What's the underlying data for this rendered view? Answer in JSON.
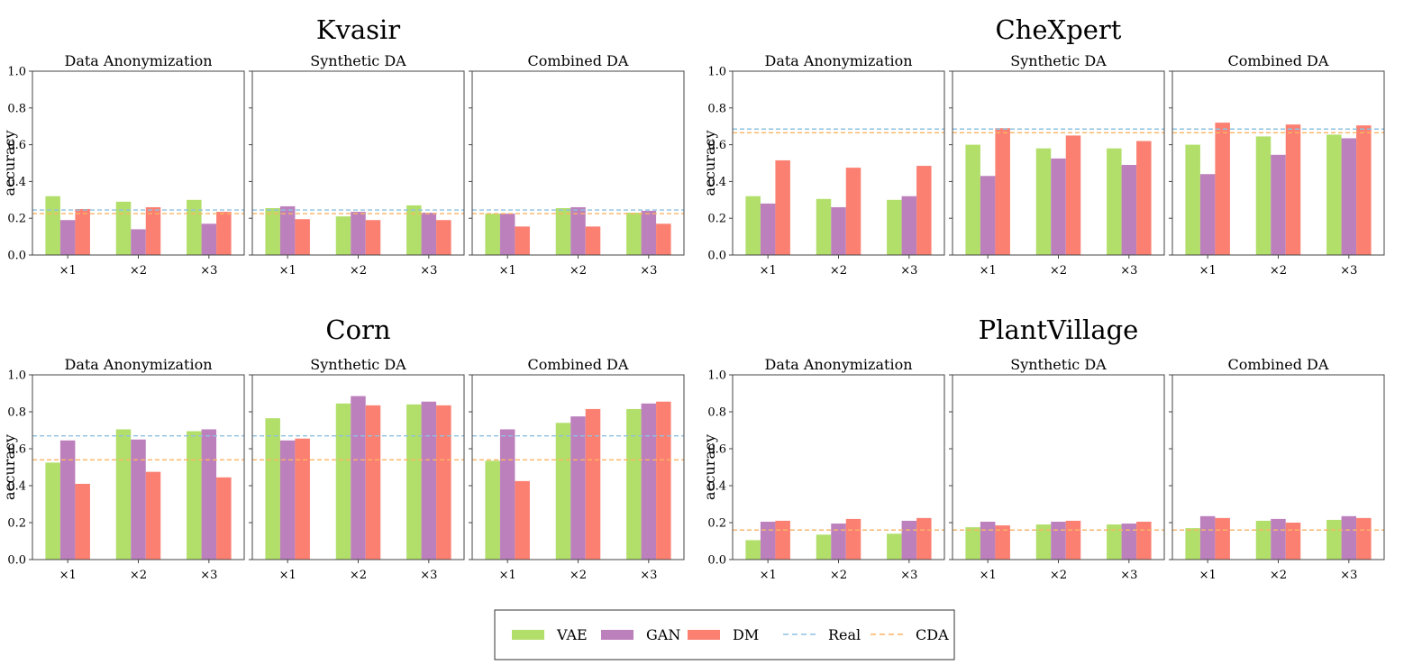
{
  "figure": {
    "tick_prefix": "×"
  },
  "chart_data": [
    {
      "type": "bar",
      "dataset": "Kvasir",
      "ylabel": "accuracy",
      "ylim": [
        0,
        1.0
      ],
      "yticks": [
        "0.0",
        "0.2",
        "0.4",
        "0.6",
        "0.8",
        "1.0"
      ],
      "grid": false,
      "reference_lines": {
        "Real": 0.245,
        "CDA": 0.225
      },
      "panels": [
        {
          "title": "Data Anonymization",
          "categories": [
            "×1",
            "×2",
            "×3"
          ],
          "series": [
            {
              "name": "VAE",
              "values": [
                0.32,
                0.29,
                0.3
              ]
            },
            {
              "name": "GAN",
              "values": [
                0.19,
                0.14,
                0.17
              ]
            },
            {
              "name": "DM",
              "values": [
                0.25,
                0.26,
                0.235
              ]
            }
          ]
        },
        {
          "title": "Synthetic DA",
          "categories": [
            "×1",
            "×2",
            "×3"
          ],
          "series": [
            {
              "name": "VAE",
              "values": [
                0.255,
                0.21,
                0.27
              ]
            },
            {
              "name": "GAN",
              "values": [
                0.265,
                0.235,
                0.23
              ]
            },
            {
              "name": "DM",
              "values": [
                0.195,
                0.19,
                0.19
              ]
            }
          ]
        },
        {
          "title": "Combined DA",
          "categories": [
            "×1",
            "×2",
            "×3"
          ],
          "series": [
            {
              "name": "VAE",
              "values": [
                0.225,
                0.255,
                0.23
              ]
            },
            {
              "name": "GAN",
              "values": [
                0.225,
                0.26,
                0.24
              ]
            },
            {
              "name": "DM",
              "values": [
                0.155,
                0.155,
                0.17
              ]
            }
          ]
        }
      ]
    },
    {
      "type": "bar",
      "dataset": "CheXpert",
      "ylabel": "accuracy",
      "ylim": [
        0,
        1.0
      ],
      "yticks": [
        "0.0",
        "0.2",
        "0.4",
        "0.6",
        "0.8",
        "1.0"
      ],
      "grid": false,
      "reference_lines": {
        "Real": 0.685,
        "CDA": 0.665
      },
      "panels": [
        {
          "title": "Data Anonymization",
          "categories": [
            "×1",
            "×2",
            "×3"
          ],
          "series": [
            {
              "name": "VAE",
              "values": [
                0.32,
                0.305,
                0.3
              ]
            },
            {
              "name": "GAN",
              "values": [
                0.28,
                0.26,
                0.32
              ]
            },
            {
              "name": "DM",
              "values": [
                0.515,
                0.475,
                0.485
              ]
            }
          ]
        },
        {
          "title": "Synthetic DA",
          "categories": [
            "×1",
            "×2",
            "×3"
          ],
          "series": [
            {
              "name": "VAE",
              "values": [
                0.6,
                0.58,
                0.58
              ]
            },
            {
              "name": "GAN",
              "values": [
                0.43,
                0.525,
                0.49
              ]
            },
            {
              "name": "DM",
              "values": [
                0.69,
                0.65,
                0.62
              ]
            }
          ]
        },
        {
          "title": "Combined DA",
          "categories": [
            "×1",
            "×2",
            "×3"
          ],
          "series": [
            {
              "name": "VAE",
              "values": [
                0.6,
                0.645,
                0.655
              ]
            },
            {
              "name": "GAN",
              "values": [
                0.44,
                0.545,
                0.635
              ]
            },
            {
              "name": "DM",
              "values": [
                0.72,
                0.71,
                0.705
              ]
            }
          ]
        }
      ]
    },
    {
      "type": "bar",
      "dataset": "Corn",
      "ylabel": "accuracy",
      "ylim": [
        0,
        1.0
      ],
      "yticks": [
        "0.0",
        "0.2",
        "0.4",
        "0.6",
        "0.8",
        "1.0"
      ],
      "grid": false,
      "reference_lines": {
        "Real": 0.67,
        "CDA": 0.54
      },
      "panels": [
        {
          "title": "Data Anonymization",
          "categories": [
            "×1",
            "×2",
            "×3"
          ],
          "series": [
            {
              "name": "VAE",
              "values": [
                0.525,
                0.705,
                0.695
              ]
            },
            {
              "name": "GAN",
              "values": [
                0.645,
                0.65,
                0.705
              ]
            },
            {
              "name": "DM",
              "values": [
                0.41,
                0.475,
                0.445
              ]
            }
          ]
        },
        {
          "title": "Synthetic DA",
          "categories": [
            "×1",
            "×2",
            "×3"
          ],
          "series": [
            {
              "name": "VAE",
              "values": [
                0.765,
                0.845,
                0.84
              ]
            },
            {
              "name": "GAN",
              "values": [
                0.645,
                0.885,
                0.855
              ]
            },
            {
              "name": "DM",
              "values": [
                0.655,
                0.835,
                0.835
              ]
            }
          ]
        },
        {
          "title": "Combined DA",
          "categories": [
            "×1",
            "×2",
            "×3"
          ],
          "series": [
            {
              "name": "VAE",
              "values": [
                0.535,
                0.74,
                0.815
              ]
            },
            {
              "name": "GAN",
              "values": [
                0.705,
                0.775,
                0.845
              ]
            },
            {
              "name": "DM",
              "values": [
                0.425,
                0.815,
                0.855
              ]
            }
          ]
        }
      ]
    },
    {
      "type": "bar",
      "dataset": "PlantVillage",
      "ylabel": "accuracy",
      "ylim": [
        0,
        1.0
      ],
      "yticks": [
        "0.0",
        "0.2",
        "0.4",
        "0.6",
        "0.8",
        "1.0"
      ],
      "grid": false,
      "reference_lines": {
        "Real": 0.16,
        "CDA": 0.16
      },
      "panels": [
        {
          "title": "Data Anonymization",
          "categories": [
            "×1",
            "×2",
            "×3"
          ],
          "series": [
            {
              "name": "VAE",
              "values": [
                0.105,
                0.135,
                0.14
              ]
            },
            {
              "name": "GAN",
              "values": [
                0.205,
                0.195,
                0.21
              ]
            },
            {
              "name": "DM",
              "values": [
                0.21,
                0.22,
                0.225
              ]
            }
          ]
        },
        {
          "title": "Synthetic DA",
          "categories": [
            "×1",
            "×2",
            "×3"
          ],
          "series": [
            {
              "name": "VAE",
              "values": [
                0.175,
                0.19,
                0.19
              ]
            },
            {
              "name": "GAN",
              "values": [
                0.205,
                0.205,
                0.195
              ]
            },
            {
              "name": "DM",
              "values": [
                0.185,
                0.21,
                0.205
              ]
            }
          ]
        },
        {
          "title": "Combined DA",
          "categories": [
            "×1",
            "×2",
            "×3"
          ],
          "series": [
            {
              "name": "VAE",
              "values": [
                0.17,
                0.21,
                0.215
              ]
            },
            {
              "name": "GAN",
              "values": [
                0.235,
                0.22,
                0.235
              ]
            },
            {
              "name": "DM",
              "values": [
                0.225,
                0.2,
                0.225
              ]
            }
          ]
        }
      ]
    }
  ],
  "legend": {
    "placement": "bottom-center",
    "items": [
      {
        "label": "VAE",
        "kind": "bar",
        "color": "#b2df6a"
      },
      {
        "label": "GAN",
        "kind": "bar",
        "color": "#bc80bd"
      },
      {
        "label": "DM",
        "kind": "bar",
        "color": "#fb8072"
      },
      {
        "label": "Real",
        "kind": "dashed",
        "color": "#8ec0e0"
      },
      {
        "label": "CDA",
        "kind": "dashed",
        "color": "#fdb462"
      }
    ]
  },
  "colors": {
    "VAE": "#b2df6a",
    "GAN": "#bc80bd",
    "DM": "#fb8072",
    "Real": "#8ec0e0",
    "CDA": "#fdb462",
    "axis": "#444444"
  }
}
